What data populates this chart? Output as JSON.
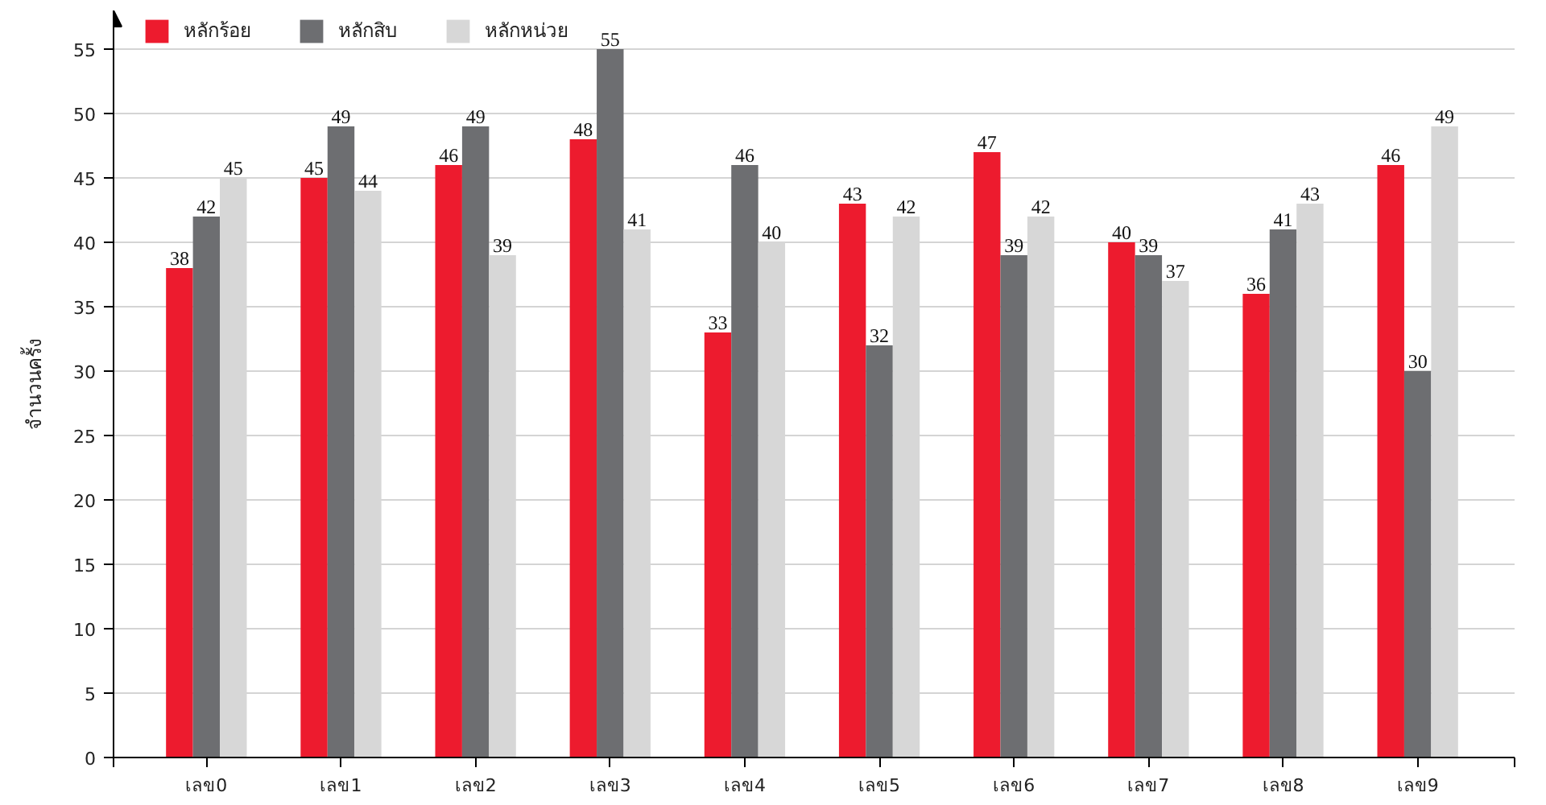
{
  "chart_data": {
    "type": "bar",
    "ylabel": "จำนวนครั้ง",
    "categories": [
      "เลข0",
      "เลข1",
      "เลข2",
      "เลข3",
      "เลข4",
      "เลข5",
      "เลข6",
      "เลข7",
      "เลข8",
      "เลข9"
    ],
    "series": [
      {
        "name": "หลักร้อย",
        "color": "#ed1b2e",
        "values": [
          38,
          45,
          46,
          48,
          33,
          43,
          47,
          40,
          36,
          46
        ]
      },
      {
        "name": "หลักสิบ",
        "color": "#6d6e71",
        "values": [
          42,
          49,
          49,
          55,
          46,
          32,
          39,
          39,
          41,
          30
        ]
      },
      {
        "name": "หลักหน่วย",
        "color": "#d7d7d7",
        "values": [
          45,
          44,
          39,
          41,
          40,
          42,
          42,
          37,
          43,
          49
        ]
      }
    ],
    "ylim": [
      0,
      58
    ],
    "yticks": [
      0,
      5,
      10,
      15,
      20,
      25,
      30,
      35,
      40,
      45,
      50,
      55
    ],
    "grid": "y",
    "legend": "top left",
    "data_labels": true
  }
}
